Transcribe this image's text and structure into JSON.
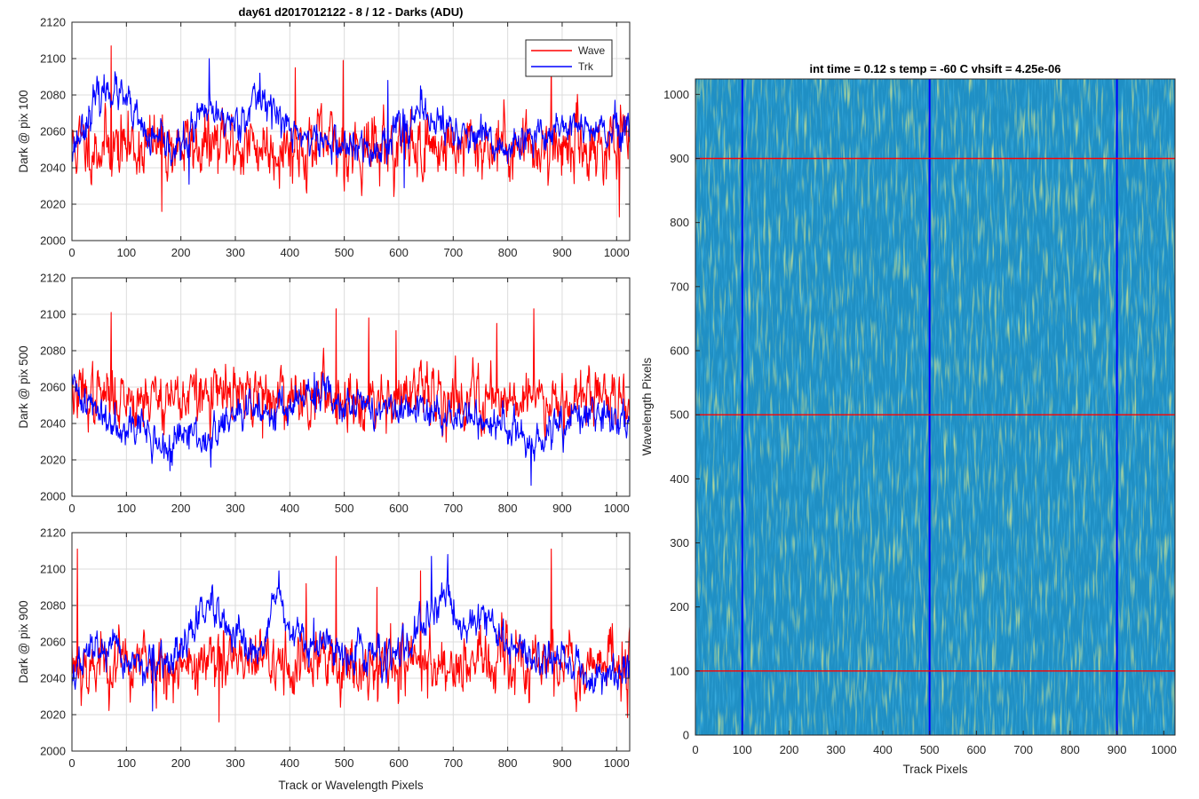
{
  "figure": {
    "left_title": "day61 d2017012122 - 8 / 12 - Darks (ADU)",
    "right_title": "int time = 0.12 s    temp = -60 C    vhsift = 4.25e-06",
    "colors": {
      "wave": "#ff0000",
      "trk": "#0000ff",
      "heatmap_base": "#1f8fc4",
      "heatmap_bright": "#a5c948"
    }
  },
  "chart_data": [
    {
      "type": "line",
      "ylabel": "Dark @ pix 100",
      "xlabel": "",
      "xlim": [
        0,
        1024
      ],
      "ylim": [
        2000,
        2120
      ],
      "xticks": [
        0,
        100,
        200,
        300,
        400,
        500,
        600,
        700,
        800,
        900,
        1000
      ],
      "yticks": [
        2000,
        2020,
        2040,
        2060,
        2080,
        2100,
        2120
      ],
      "grid": true,
      "legend": {
        "position": "top-right",
        "entries": [
          "Wave",
          "Trk"
        ]
      },
      "series": [
        {
          "name": "Wave",
          "color": "#ff0000",
          "mean": 2052,
          "noise": 9,
          "seed": 11,
          "peaks": [
            [
              72,
              2107
            ],
            [
              880,
              2099
            ],
            [
              498,
              2099
            ],
            [
              1005,
              2013
            ],
            [
              975,
              2034
            ],
            [
              410,
              2095
            ],
            [
              165,
              2016
            ]
          ]
        },
        {
          "name": "Trk",
          "color": "#0000ff",
          "mean": 2055,
          "noise": 5,
          "seed": 23,
          "wave_points": [
            [
              0,
              2050
            ],
            [
              40,
              2075
            ],
            [
              70,
              2085
            ],
            [
              100,
              2075
            ],
            [
              140,
              2055
            ],
            [
              200,
              2050
            ],
            [
              240,
              2070
            ],
            [
              300,
              2065
            ],
            [
              350,
              2080
            ],
            [
              400,
              2060
            ],
            [
              450,
              2055
            ],
            [
              500,
              2052
            ],
            [
              560,
              2048
            ],
            [
              600,
              2065
            ],
            [
              660,
              2068
            ],
            [
              700,
              2060
            ],
            [
              750,
              2055
            ],
            [
              800,
              2050
            ],
            [
              850,
              2055
            ],
            [
              900,
              2065
            ],
            [
              950,
              2060
            ],
            [
              1024,
              2058
            ]
          ],
          "peaks": [
            [
              252,
              2100
            ],
            [
              345,
              2092
            ],
            [
              580,
              2088
            ],
            [
              640,
              2085
            ],
            [
              215,
              2031
            ],
            [
              610,
              2029
            ]
          ]
        }
      ]
    },
    {
      "type": "line",
      "ylabel": "Dark @ pix 500",
      "xlabel": "",
      "xlim": [
        0,
        1024
      ],
      "ylim": [
        2000,
        2120
      ],
      "xticks": [
        0,
        100,
        200,
        300,
        400,
        500,
        600,
        700,
        800,
        900,
        1000
      ],
      "yticks": [
        2000,
        2020,
        2040,
        2060,
        2080,
        2100,
        2120
      ],
      "grid": true,
      "series": [
        {
          "name": "Wave",
          "color": "#ff0000",
          "mean": 2055,
          "noise": 8,
          "seed": 37,
          "peaks": [
            [
              72,
              2101
            ],
            [
              485,
              2103
            ],
            [
              848,
              2103
            ],
            [
              545,
              2098
            ],
            [
              780,
              2095
            ],
            [
              595,
              2091
            ],
            [
              350,
              2032
            ]
          ]
        },
        {
          "name": "Trk",
          "color": "#0000ff",
          "mean": 2045,
          "noise": 5,
          "seed": 41,
          "wave_points": [
            [
              0,
              2060
            ],
            [
              60,
              2043
            ],
            [
              120,
              2040
            ],
            [
              170,
              2025
            ],
            [
              220,
              2035
            ],
            [
              250,
              2030
            ],
            [
              300,
              2045
            ],
            [
              400,
              2050
            ],
            [
              470,
              2057
            ],
            [
              510,
              2052
            ],
            [
              560,
              2048
            ],
            [
              620,
              2046
            ],
            [
              700,
              2045
            ],
            [
              780,
              2040
            ],
            [
              820,
              2035
            ],
            [
              845,
              2025
            ],
            [
              900,
              2040
            ],
            [
              960,
              2045
            ],
            [
              1024,
              2042
            ]
          ],
          "peaks": [
            [
              843,
              2006
            ],
            [
              180,
              2014
            ],
            [
              255,
              2016
            ],
            [
              445,
              2068
            ]
          ]
        }
      ]
    },
    {
      "type": "line",
      "ylabel": "Dark @ pix 900",
      "xlabel": "Track or Wavelength Pixels",
      "xlim": [
        0,
        1024
      ],
      "ylim": [
        2000,
        2120
      ],
      "xticks": [
        0,
        100,
        200,
        300,
        400,
        500,
        600,
        700,
        800,
        900,
        1000
      ],
      "yticks": [
        2000,
        2020,
        2040,
        2060,
        2080,
        2100,
        2120
      ],
      "grid": true,
      "series": [
        {
          "name": "Wave",
          "color": "#ff0000",
          "mean": 2048,
          "noise": 9,
          "seed": 53,
          "peaks": [
            [
              10,
              2111
            ],
            [
              485,
              2107
            ],
            [
              880,
              2111
            ],
            [
              270,
              2016
            ],
            [
              430,
              2092
            ],
            [
              640,
              2099
            ],
            [
              560,
              2090
            ]
          ]
        },
        {
          "name": "Trk",
          "color": "#0000ff",
          "mean": 2055,
          "noise": 5,
          "seed": 67,
          "wave_points": [
            [
              0,
              2040
            ],
            [
              40,
              2058
            ],
            [
              100,
              2050
            ],
            [
              160,
              2045
            ],
            [
              200,
              2055
            ],
            [
              250,
              2082
            ],
            [
              270,
              2070
            ],
            [
              300,
              2060
            ],
            [
              340,
              2050
            ],
            [
              375,
              2088
            ],
            [
              400,
              2062
            ],
            [
              450,
              2058
            ],
            [
              500,
              2055
            ],
            [
              560,
              2053
            ],
            [
              620,
              2055
            ],
            [
              660,
              2075
            ],
            [
              690,
              2090
            ],
            [
              715,
              2065
            ],
            [
              750,
              2078
            ],
            [
              800,
              2058
            ],
            [
              850,
              2050
            ],
            [
              900,
              2052
            ],
            [
              950,
              2040
            ],
            [
              1024,
              2045
            ]
          ],
          "peaks": [
            [
              380,
              2099
            ],
            [
              660,
              2107
            ],
            [
              690,
              2108
            ],
            [
              148,
              2022
            ]
          ]
        }
      ]
    },
    {
      "type": "heatmap",
      "title": "int time = 0.12 s    temp = -60 C    vhsift = 4.25e-06",
      "xlabel": "Track Pixels",
      "ylabel": "Wavelength Pixels",
      "xlim": [
        0,
        1024
      ],
      "ylim": [
        0,
        1024
      ],
      "xticks": [
        0,
        100,
        200,
        300,
        400,
        500,
        600,
        700,
        800,
        900,
        1000
      ],
      "yticks": [
        0,
        100,
        200,
        300,
        400,
        500,
        600,
        700,
        800,
        900,
        1000
      ],
      "vertical_markers": {
        "color": "#0000ff",
        "x": [
          100,
          500,
          900
        ]
      },
      "horizontal_markers": {
        "color": "#ff0000",
        "y": [
          100,
          500,
          900
        ]
      }
    }
  ]
}
